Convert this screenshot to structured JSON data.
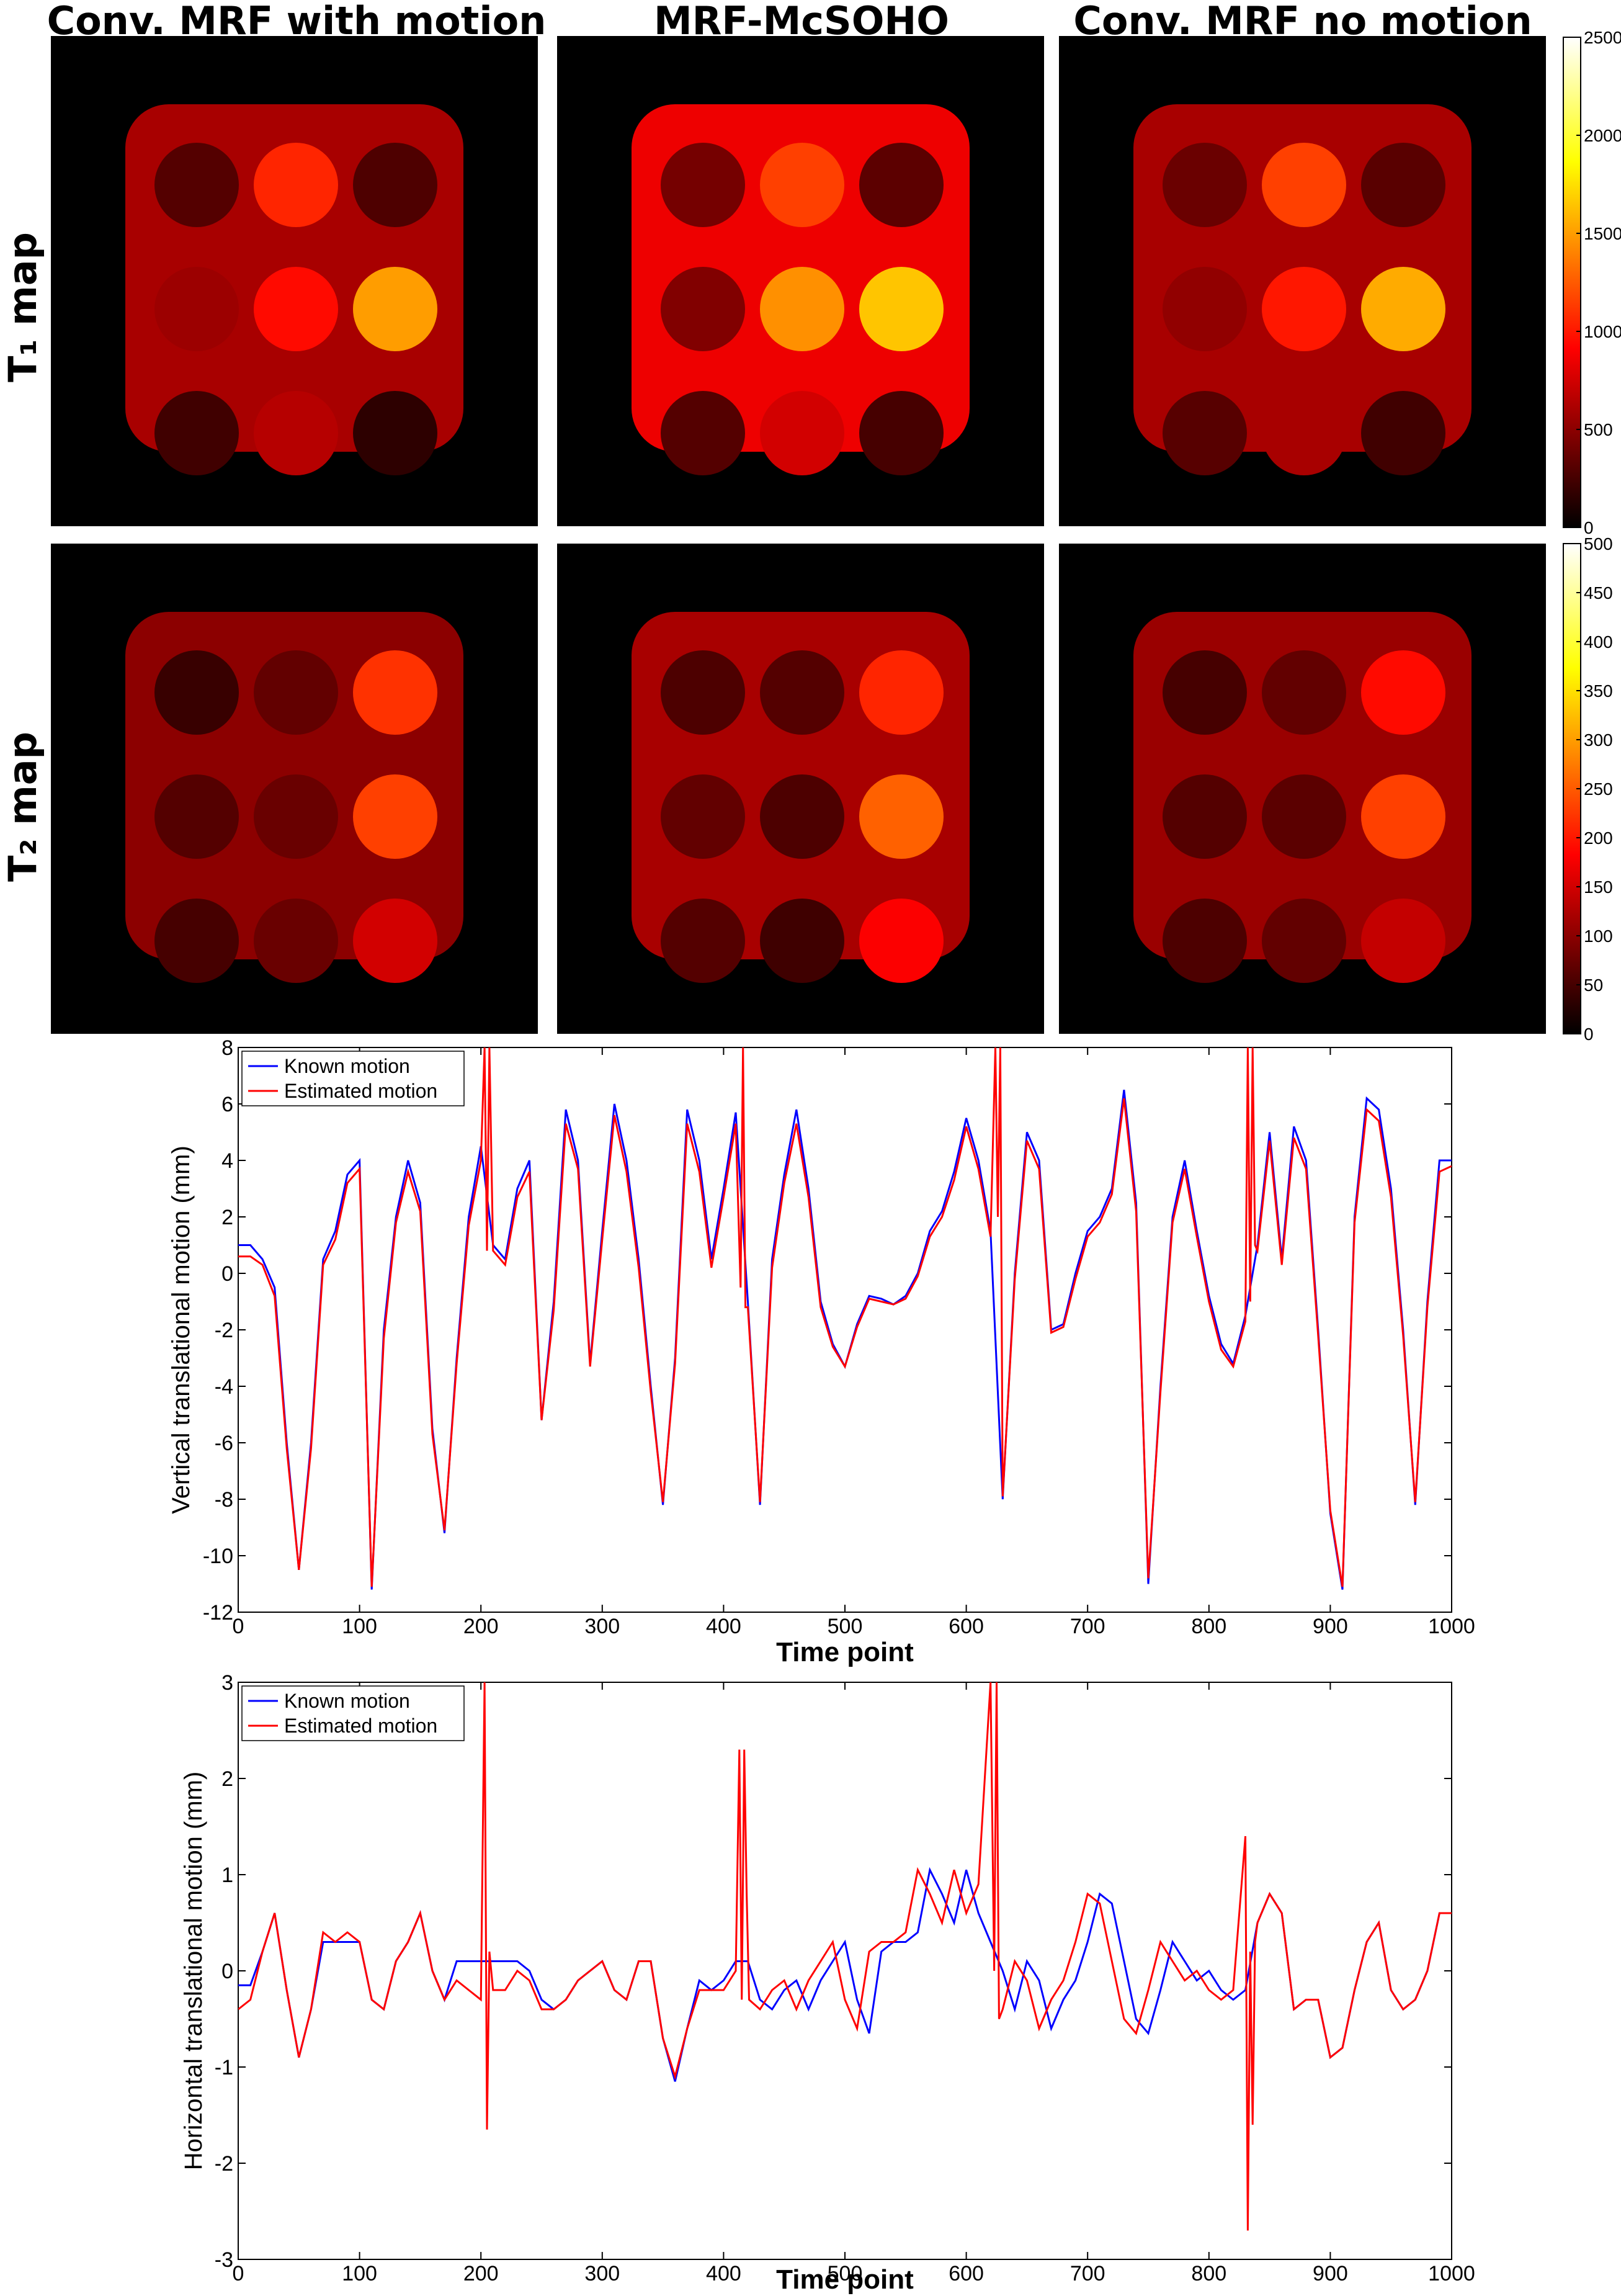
{
  "figure": {
    "column_titles": [
      "Conv. MRF with motion",
      "MRF-McSOHO",
      "Conv. MRF no motion"
    ],
    "row_labels": [
      "T₁ map",
      "T₂ map"
    ],
    "colors": {
      "map_background": "#000000",
      "known_motion": "#0000ff",
      "estimated_motion": "#ff0000"
    }
  },
  "chart_data": [
    {
      "type": "heatmap",
      "name": "T1 maps",
      "colormap": "hot",
      "colorbar_ticks": [
        "0",
        "500",
        "1000",
        "1500",
        "2000",
        "2500"
      ],
      "colorbar_range": [
        0,
        2500
      ],
      "panels": [
        {
          "column": "Conv. MRF with motion",
          "vials_rowmajor": [
            300,
            1050,
            280,
            560,
            950,
            1500,
            230,
            650,
            160
          ],
          "phantom": 600
        },
        {
          "column": "MRF-McSOHO",
          "vials_rowmajor": [
            420,
            1150,
            330,
            460,
            1450,
            1650,
            300,
            750,
            250
          ],
          "phantom": 850
        },
        {
          "column": "Conv. MRF no motion",
          "vials_rowmajor": [
            380,
            1150,
            320,
            520,
            1000,
            1550,
            310,
            600,
            230
          ],
          "phantom": 600
        }
      ]
    },
    {
      "type": "heatmap",
      "name": "T2 maps",
      "colormap": "hot",
      "colorbar_ticks": [
        "0",
        "50",
        "100",
        "150",
        "200",
        "250",
        "300",
        "350",
        "400",
        "450",
        "500"
      ],
      "colorbar_range": [
        0,
        500
      ],
      "panels": [
        {
          "column": "Conv. MRF with motion",
          "vials_rowmajor": [
            40,
            70,
            220,
            60,
            75,
            230,
            50,
            75,
            150
          ],
          "phantom": 100
        },
        {
          "column": "MRF-McSOHO",
          "vials_rowmajor": [
            55,
            60,
            210,
            70,
            55,
            255,
            60,
            45,
            180
          ],
          "phantom": 120
        },
        {
          "column": "Conv. MRF no motion",
          "vials_rowmajor": [
            50,
            70,
            190,
            60,
            65,
            230,
            55,
            70,
            140
          ],
          "phantom": 110
        }
      ]
    },
    {
      "type": "line",
      "xlabel": "Time point",
      "ylabel": "Vertical translational motion (mm)",
      "xlim": [
        0,
        1000
      ],
      "ylim": [
        -12,
        8
      ],
      "xticks": [
        0,
        100,
        200,
        300,
        400,
        500,
        600,
        700,
        800,
        900,
        1000
      ],
      "yticks": [
        -12,
        -10,
        -8,
        -6,
        -4,
        -2,
        0,
        2,
        4,
        6,
        8
      ],
      "legend": {
        "entries": [
          "Known motion",
          "Estimated motion"
        ],
        "placement": "top-left"
      },
      "series": [
        {
          "name": "Known motion",
          "x": [
            0,
            10,
            20,
            30,
            40,
            50,
            60,
            70,
            80,
            90,
            100,
            110,
            120,
            130,
            140,
            150,
            160,
            170,
            180,
            190,
            200,
            210,
            220,
            230,
            240,
            250,
            260,
            270,
            280,
            290,
            300,
            310,
            320,
            330,
            340,
            350,
            360,
            370,
            380,
            390,
            400,
            410,
            420,
            430,
            440,
            450,
            460,
            470,
            480,
            490,
            500,
            510,
            520,
            530,
            540,
            550,
            560,
            570,
            580,
            590,
            600,
            610,
            620,
            630,
            640,
            650,
            660,
            670,
            680,
            690,
            700,
            710,
            720,
            730,
            740,
            750,
            760,
            770,
            780,
            790,
            800,
            810,
            820,
            830,
            840,
            850,
            860,
            870,
            880,
            890,
            900,
            910,
            920,
            930,
            940,
            950,
            960,
            970,
            980,
            990,
            1000
          ],
          "y": [
            1.0,
            1.0,
            0.5,
            -0.5,
            -6.0,
            -10.5,
            -6.0,
            0.5,
            1.5,
            3.5,
            4.0,
            -11.2,
            -2.0,
            2.0,
            4.0,
            2.5,
            -5.5,
            -9.2,
            -3.0,
            2.0,
            4.5,
            1.0,
            0.5,
            3.0,
            4.0,
            -5.2,
            -1.0,
            5.8,
            4.0,
            -3.2,
            1.5,
            6.0,
            4.0,
            0.5,
            -4.0,
            -8.2,
            -3.0,
            5.8,
            4.0,
            0.5,
            3.0,
            5.7,
            -1.0,
            -8.2,
            0.5,
            3.5,
            5.8,
            3.0,
            -1.0,
            -2.5,
            -3.3,
            -1.8,
            -0.8,
            -0.9,
            -1.1,
            -0.8,
            0.0,
            1.5,
            2.2,
            3.6,
            5.5,
            4.0,
            1.5,
            -8.0,
            0.0,
            5.0,
            4.0,
            -2.0,
            -1.8,
            0.0,
            1.5,
            2.0,
            3.0,
            6.5,
            2.5,
            -11.0,
            -4.0,
            2.0,
            4.0,
            1.5,
            -0.8,
            -2.5,
            -3.2,
            -1.5,
            1.0,
            5.0,
            0.5,
            5.2,
            4.0,
            -2.0,
            -8.5,
            -11.2,
            2.0,
            6.2,
            5.8,
            3.0,
            -2.0,
            -8.2,
            -1.0,
            4.0,
            4.0
          ]
        },
        {
          "name": "Estimated motion",
          "x": [
            0,
            10,
            20,
            30,
            40,
            50,
            60,
            70,
            80,
            90,
            100,
            110,
            120,
            130,
            140,
            150,
            160,
            170,
            180,
            190,
            200,
            203,
            205,
            207,
            210,
            220,
            230,
            240,
            250,
            260,
            270,
            280,
            290,
            300,
            310,
            320,
            330,
            340,
            350,
            360,
            370,
            380,
            390,
            400,
            410,
            414,
            416,
            418,
            420,
            430,
            440,
            450,
            460,
            470,
            480,
            490,
            500,
            510,
            520,
            530,
            540,
            550,
            560,
            570,
            580,
            590,
            600,
            610,
            620,
            624,
            626,
            628,
            630,
            640,
            650,
            660,
            670,
            680,
            690,
            700,
            710,
            720,
            730,
            740,
            750,
            760,
            770,
            780,
            790,
            800,
            810,
            820,
            830,
            832,
            834,
            836,
            838,
            840,
            850,
            860,
            870,
            880,
            890,
            900,
            910,
            920,
            930,
            940,
            950,
            960,
            970,
            980,
            990,
            1000
          ],
          "y": [
            0.6,
            0.6,
            0.3,
            -0.8,
            -6.2,
            -10.5,
            -6.2,
            0.3,
            1.2,
            3.2,
            3.7,
            -11.1,
            -2.3,
            1.8,
            3.6,
            2.2,
            -5.7,
            -9.1,
            -3.2,
            1.7,
            4.0,
            8.0,
            0.8,
            8.0,
            0.8,
            0.3,
            2.7,
            3.6,
            -5.2,
            -1.3,
            5.3,
            3.7,
            -3.3,
            1.2,
            5.6,
            3.6,
            0.2,
            -4.2,
            -8.1,
            -3.2,
            5.3,
            3.6,
            0.2,
            2.7,
            5.3,
            -0.5,
            8.0,
            -1.2,
            -1.2,
            -8.1,
            0.2,
            3.2,
            5.3,
            2.7,
            -1.2,
            -2.6,
            -3.3,
            -1.9,
            -0.9,
            -1.0,
            -1.1,
            -0.9,
            -0.1,
            1.3,
            2.0,
            3.3,
            5.2,
            3.7,
            1.3,
            8.0,
            2.0,
            8.0,
            -7.9,
            -0.2,
            4.7,
            3.7,
            -2.1,
            -1.9,
            -0.2,
            1.3,
            1.8,
            2.8,
            6.2,
            2.2,
            -10.8,
            -4.2,
            1.8,
            3.7,
            1.3,
            -1.0,
            -2.7,
            -3.3,
            -1.7,
            8.0,
            -1.0,
            8.0,
            1.0,
            0.8,
            4.7,
            0.3,
            4.8,
            3.7,
            -2.2,
            -8.4,
            -11.1,
            1.8,
            5.8,
            5.4,
            2.7,
            -2.2,
            -8.1,
            -1.2,
            3.6,
            3.8
          ]
        }
      ]
    },
    {
      "type": "line",
      "xlabel": "Time point",
      "ylabel": "Horizontal translational motion (mm)",
      "xlim": [
        0,
        1000
      ],
      "ylim": [
        -3,
        3
      ],
      "xticks": [
        0,
        100,
        200,
        300,
        400,
        500,
        600,
        700,
        800,
        900,
        1000
      ],
      "yticks": [
        -3,
        -2,
        -1,
        0,
        1,
        2,
        3
      ],
      "legend": {
        "entries": [
          "Known motion",
          "Estimated motion"
        ],
        "placement": "top-left"
      },
      "series": [
        {
          "name": "Known motion",
          "x": [
            0,
            10,
            20,
            30,
            40,
            50,
            60,
            70,
            80,
            90,
            100,
            110,
            120,
            130,
            140,
            150,
            160,
            170,
            180,
            190,
            200,
            210,
            220,
            230,
            240,
            250,
            260,
            270,
            280,
            290,
            300,
            310,
            320,
            330,
            340,
            350,
            360,
            370,
            380,
            390,
            400,
            410,
            420,
            430,
            440,
            450,
            460,
            470,
            480,
            490,
            500,
            510,
            520,
            530,
            540,
            550,
            560,
            570,
            580,
            590,
            600,
            610,
            620,
            630,
            640,
            650,
            660,
            670,
            680,
            690,
            700,
            710,
            720,
            730,
            740,
            750,
            760,
            770,
            780,
            790,
            800,
            810,
            820,
            830,
            840,
            850,
            860,
            870,
            880,
            890,
            900,
            910,
            920,
            930,
            940,
            950,
            960,
            970,
            980,
            990,
            1000
          ],
          "y": [
            -0.15,
            -0.15,
            0.2,
            0.6,
            -0.2,
            -0.9,
            -0.4,
            0.3,
            0.3,
            0.3,
            0.3,
            -0.3,
            -0.4,
            0.1,
            0.3,
            0.6,
            0.0,
            -0.3,
            0.1,
            0.1,
            0.1,
            0.1,
            0.1,
            0.1,
            0.0,
            -0.3,
            -0.4,
            -0.3,
            -0.1,
            0.0,
            0.1,
            -0.2,
            -0.3,
            0.1,
            0.1,
            -0.7,
            -1.15,
            -0.6,
            -0.1,
            -0.2,
            -0.1,
            0.1,
            0.1,
            -0.3,
            -0.4,
            -0.2,
            -0.1,
            -0.4,
            -0.1,
            0.1,
            0.3,
            -0.3,
            -0.65,
            0.2,
            0.3,
            0.3,
            0.4,
            1.05,
            0.8,
            0.5,
            1.05,
            0.6,
            0.3,
            0.0,
            -0.4,
            0.1,
            -0.1,
            -0.6,
            -0.3,
            -0.1,
            0.3,
            0.8,
            0.7,
            0.1,
            -0.5,
            -0.65,
            -0.2,
            0.3,
            0.1,
            -0.1,
            0.0,
            -0.2,
            -0.3,
            -0.2,
            0.5,
            0.8,
            0.6,
            -0.4,
            -0.3,
            -0.3,
            -0.9,
            -0.8,
            -0.2,
            0.3,
            0.5,
            -0.2,
            -0.4,
            -0.3,
            0.0,
            0.6,
            0.6
          ]
        },
        {
          "name": "Estimated motion",
          "x": [
            0,
            10,
            20,
            30,
            40,
            50,
            60,
            70,
            80,
            90,
            100,
            110,
            120,
            130,
            140,
            150,
            160,
            170,
            180,
            190,
            200,
            203,
            205,
            207,
            210,
            220,
            230,
            240,
            250,
            260,
            270,
            280,
            290,
            300,
            310,
            320,
            330,
            340,
            350,
            360,
            370,
            380,
            390,
            400,
            410,
            413,
            415,
            417,
            419,
            421,
            430,
            440,
            450,
            460,
            470,
            480,
            490,
            500,
            510,
            520,
            530,
            540,
            550,
            560,
            570,
            580,
            590,
            600,
            610,
            620,
            623,
            625,
            627,
            630,
            640,
            650,
            660,
            670,
            680,
            690,
            700,
            710,
            720,
            730,
            740,
            750,
            760,
            770,
            780,
            790,
            800,
            810,
            820,
            830,
            832,
            834,
            836,
            838,
            840,
            850,
            860,
            870,
            880,
            890,
            900,
            910,
            920,
            930,
            940,
            950,
            960,
            970,
            980,
            990,
            1000
          ],
          "y": [
            -0.4,
            -0.3,
            0.2,
            0.6,
            -0.2,
            -0.9,
            -0.4,
            0.4,
            0.3,
            0.4,
            0.3,
            -0.3,
            -0.4,
            0.1,
            0.3,
            0.6,
            0.0,
            -0.3,
            -0.1,
            -0.2,
            -0.3,
            3.0,
            -1.65,
            0.2,
            -0.2,
            -0.2,
            0.0,
            -0.1,
            -0.4,
            -0.4,
            -0.3,
            -0.1,
            0.0,
            0.1,
            -0.2,
            -0.3,
            0.1,
            0.1,
            -0.7,
            -1.1,
            -0.6,
            -0.2,
            -0.2,
            -0.2,
            0.0,
            2.3,
            -0.3,
            2.3,
            0.8,
            -0.3,
            -0.4,
            -0.2,
            -0.1,
            -0.4,
            -0.1,
            0.1,
            0.3,
            -0.3,
            -0.6,
            0.2,
            0.3,
            0.3,
            0.4,
            1.05,
            0.8,
            0.5,
            1.05,
            0.6,
            0.9,
            3.0,
            0.0,
            3.0,
            -0.5,
            -0.4,
            0.1,
            -0.1,
            -0.6,
            -0.3,
            -0.1,
            0.3,
            0.8,
            0.7,
            0.1,
            -0.5,
            -0.65,
            -0.2,
            0.3,
            0.1,
            -0.1,
            0.0,
            -0.2,
            -0.3,
            -0.2,
            1.4,
            -2.7,
            0.2,
            -1.6,
            0.3,
            0.5,
            0.8,
            0.6,
            -0.4,
            -0.3,
            -0.3,
            -0.9,
            -0.8,
            -0.2,
            0.3,
            0.5,
            -0.2,
            -0.4,
            -0.3,
            0.0,
            0.6,
            0.6
          ]
        }
      ]
    }
  ]
}
